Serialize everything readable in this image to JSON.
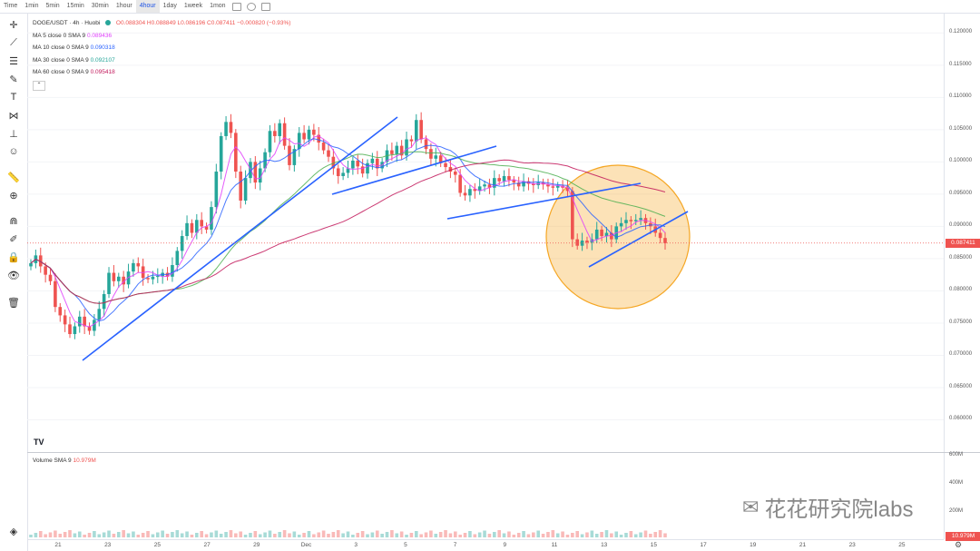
{
  "toolbar": {
    "timeframes": [
      "Time",
      "1min",
      "5min",
      "15min",
      "30min",
      "1hour",
      "4hour",
      "1day",
      "1week",
      "1mon"
    ],
    "active_timeframe": "4hour"
  },
  "legend": {
    "symbol": "DOGE/USDT · 4h · Huobi",
    "ohlc": "O0.088304 H0.088849 L0.086196 C0.087411 −0.000820 (−0.93%)",
    "ma": [
      {
        "label": "MA 5 close 0 SMA 9",
        "value": "0.089436",
        "color": "#e040fb"
      },
      {
        "label": "MA 10 close 0 SMA 9",
        "value": "0.090318",
        "color": "#2962ff"
      },
      {
        "label": "MA 30 close 0 SMA 9",
        "value": "0.092107",
        "color": "#26a69a"
      },
      {
        "label": "MA 60 close 0 SMA 9",
        "value": "0.095418",
        "color": "#c2185b"
      }
    ]
  },
  "price_axis": {
    "labels": [
      "0.120000",
      "0.115000",
      "0.110000",
      "0.105000",
      "0.100000",
      "0.095000",
      "0.090000",
      "0.085000",
      "0.080000",
      "0.075000",
      "0.070000",
      "0.065000",
      "0.060000"
    ],
    "current_price": "0.087411"
  },
  "volume": {
    "legend_label": "Volume SMA 9",
    "legend_value": "10.979M",
    "axis_labels": [
      "600M",
      "400M",
      "200M"
    ],
    "current_value": "10.979M"
  },
  "time_axis": {
    "labels": [
      "21",
      "23",
      "25",
      "27",
      "29",
      "Dec",
      "3",
      "5",
      "7",
      "9",
      "11",
      "13",
      "15",
      "17",
      "19",
      "21",
      "23",
      "25"
    ]
  },
  "watermark": "花花研究院labs",
  "tradingview_logo": "TV",
  "colors": {
    "up": "#26a69a",
    "down": "#ef5350",
    "ma5": "#e040fb",
    "ma10": "#2962ff",
    "ma30": "#4caf50",
    "ma60": "#c2185b",
    "trend": "#2962ff",
    "highlight": "#f5a623"
  },
  "chart_data": {
    "type": "candlestick",
    "title": "DOGE/USDT · 4h · Huobi",
    "x_start": "Nov 20",
    "x_interval": "4h",
    "ylim": [
      0.055,
      0.123
    ],
    "closes": [
      0.0843,
      0.0855,
      0.0838,
      0.0825,
      0.0815,
      0.0775,
      0.0762,
      0.0748,
      0.0733,
      0.0745,
      0.076,
      0.0745,
      0.0738,
      0.0755,
      0.0772,
      0.0795,
      0.0828,
      0.0815,
      0.0822,
      0.081,
      0.083,
      0.0843,
      0.0838,
      0.082,
      0.0818,
      0.0822,
      0.0823,
      0.0828,
      0.0822,
      0.084,
      0.0862,
      0.0885,
      0.0905,
      0.089,
      0.091,
      0.09,
      0.0895,
      0.093,
      0.0985,
      0.104,
      0.1062,
      0.1045,
      0.0985,
      0.094,
      0.0975,
      0.1,
      0.0968,
      0.099,
      0.1015,
      0.1048,
      0.104,
      0.106,
      0.1025,
      0.0995,
      0.102,
      0.1045,
      0.1035,
      0.105,
      0.1042,
      0.103,
      0.1018,
      0.1008,
      0.099,
      0.0978,
      0.0983,
      0.099,
      0.1002,
      0.0993,
      0.0982,
      0.0998,
      0.1005,
      0.099,
      0.1,
      0.1018,
      0.1012,
      0.1025,
      0.101,
      0.1035,
      0.1032,
      0.1065,
      0.1035,
      0.102,
      0.1005,
      0.101,
      0.0998,
      0.0992,
      0.0985,
      0.098,
      0.0952,
      0.0948,
      0.0958,
      0.0955,
      0.0962,
      0.0965,
      0.096,
      0.0975,
      0.097,
      0.0978,
      0.0972,
      0.0968,
      0.0962,
      0.097,
      0.0966,
      0.0964,
      0.0968,
      0.0965,
      0.0962,
      0.096,
      0.0963,
      0.096,
      0.0955,
      0.088,
      0.087,
      0.0878,
      0.0875,
      0.088,
      0.0895,
      0.0885,
      0.089,
      0.088,
      0.09,
      0.0905,
      0.091,
      0.0908,
      0.091,
      0.0913,
      0.0905,
      0.09,
      0.089,
      0.0882,
      0.0874
    ],
    "ma_periods": [
      5,
      10,
      30,
      60
    ]
  }
}
